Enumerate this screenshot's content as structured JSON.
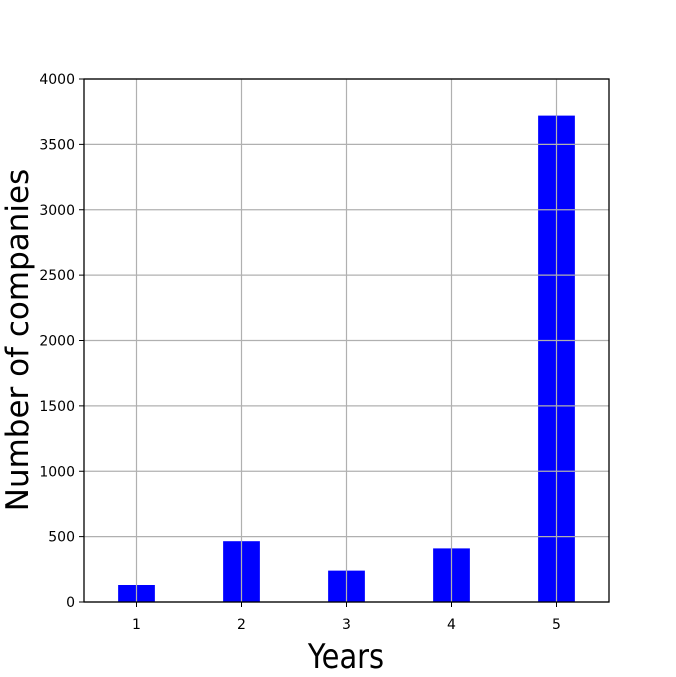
{
  "chart_data": {
    "type": "bar",
    "categories": [
      "1",
      "2",
      "3",
      "4",
      "5"
    ],
    "values": [
      130,
      465,
      240,
      410,
      3720
    ],
    "xlabel": "Years",
    "ylabel": "Number of companies",
    "ylim": [
      0,
      4000
    ],
    "yticks": [
      "0",
      "500",
      "1000",
      "1500",
      "2000",
      "2500",
      "3000",
      "3500",
      "4000"
    ],
    "grid": true,
    "bar_color": "#0000ff",
    "grid_color": "#b0b0b0"
  }
}
